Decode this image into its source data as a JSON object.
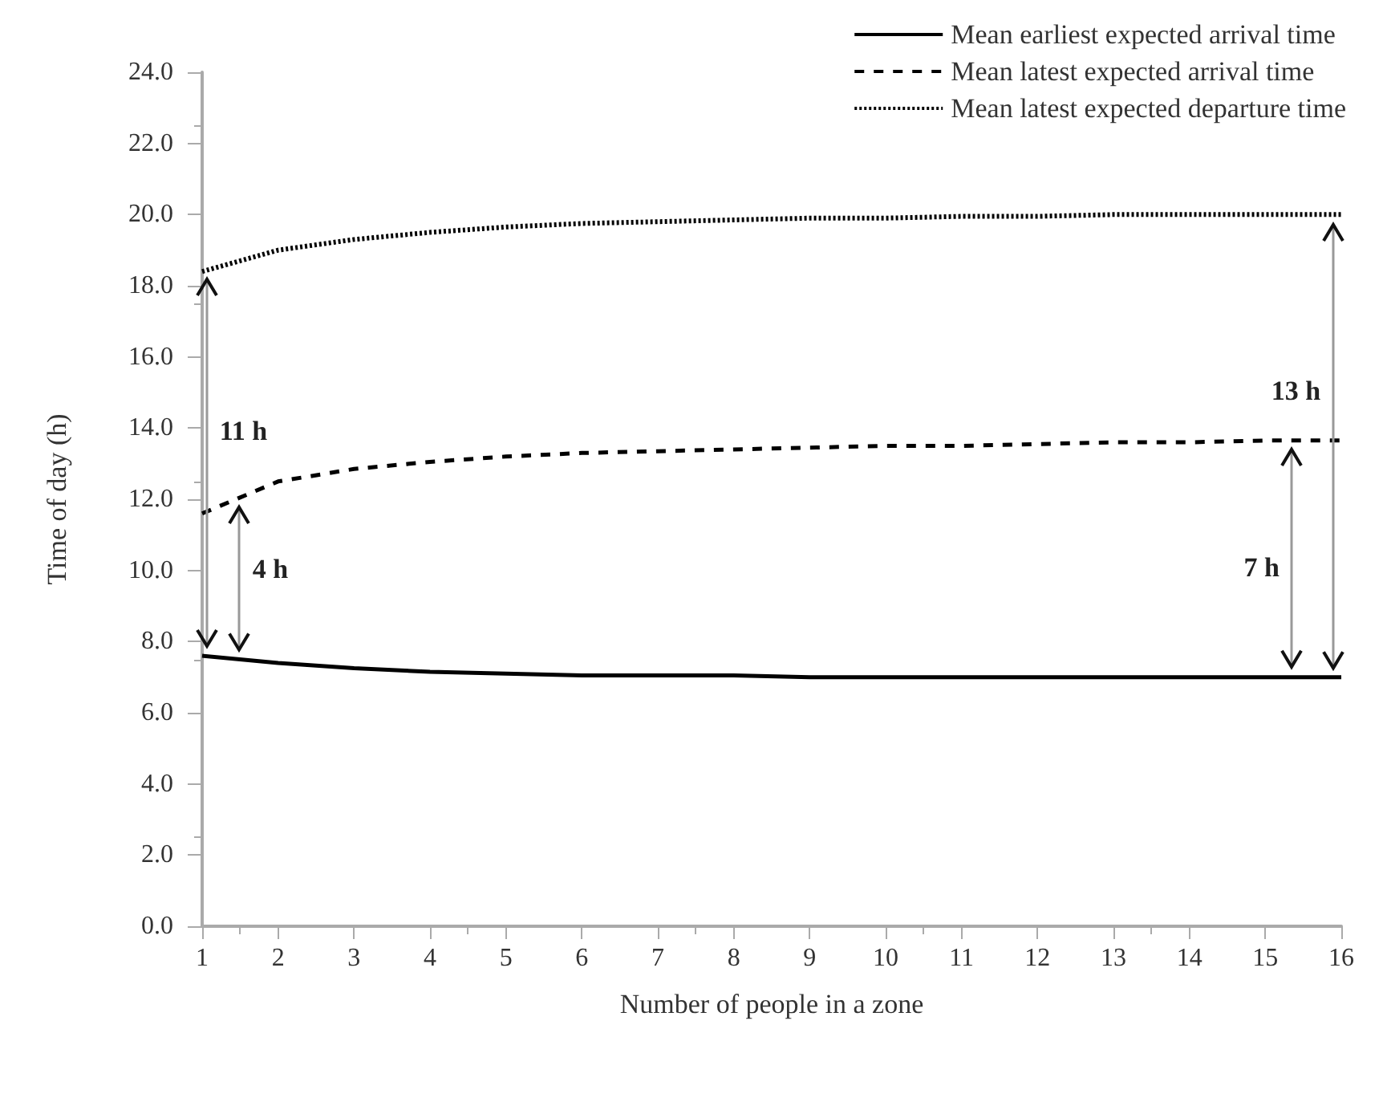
{
  "chart_data": {
    "type": "line",
    "xlabel": "Number of people in a zone",
    "ylabel": "Time of day (h)",
    "x": [
      1,
      2,
      3,
      4,
      5,
      6,
      7,
      8,
      9,
      10,
      11,
      12,
      13,
      14,
      15,
      16
    ],
    "series": [
      {
        "name": "Mean earliest expected arrival time",
        "color": "#000000",
        "line_style": "solid",
        "values": [
          7.6,
          7.4,
          7.25,
          7.15,
          7.1,
          7.05,
          7.05,
          7.05,
          7.0,
          7.0,
          7.0,
          7.0,
          7.0,
          7.0,
          7.0,
          7.0
        ]
      },
      {
        "name": "Mean latest expected arrival time",
        "color": "#000000",
        "line_style": "dashed",
        "values": [
          11.6,
          12.5,
          12.85,
          13.05,
          13.2,
          13.3,
          13.35,
          13.4,
          13.45,
          13.5,
          13.5,
          13.55,
          13.6,
          13.6,
          13.65,
          13.65
        ]
      },
      {
        "name": "Mean latest expected departure time",
        "color": "#000000",
        "line_style": "dotted",
        "values": [
          18.4,
          19.0,
          19.3,
          19.5,
          19.65,
          19.75,
          19.8,
          19.85,
          19.9,
          19.9,
          19.95,
          19.95,
          20.0,
          20.0,
          20.0,
          20.0
        ]
      }
    ],
    "xlim": [
      1,
      16
    ],
    "xticks": [
      1,
      2,
      3,
      4,
      5,
      6,
      7,
      8,
      9,
      10,
      11,
      12,
      13,
      14,
      15,
      16
    ],
    "ylim": [
      0,
      24
    ],
    "yticks": [
      {
        "value": 0,
        "label": "0.0"
      },
      {
        "value": 2,
        "label": "2.0"
      },
      {
        "value": 4,
        "label": "4.0"
      },
      {
        "value": 6,
        "label": "6.0"
      },
      {
        "value": 8,
        "label": "8.0"
      },
      {
        "value": 10,
        "label": "10.0"
      },
      {
        "value": 12,
        "label": "12.0"
      },
      {
        "value": 14,
        "label": "14.0"
      },
      {
        "value": 16,
        "label": "16.0"
      },
      {
        "value": 18,
        "label": "18.0"
      },
      {
        "value": 20,
        "label": "20.0"
      },
      {
        "value": 22,
        "label": "22.0"
      },
      {
        "value": 24,
        "label": "24.0"
      }
    ],
    "annotations": [
      "11 h",
      "4 h",
      "7 h",
      "13 h"
    ],
    "grid": false,
    "legend": "top right",
    "marker": "none"
  }
}
